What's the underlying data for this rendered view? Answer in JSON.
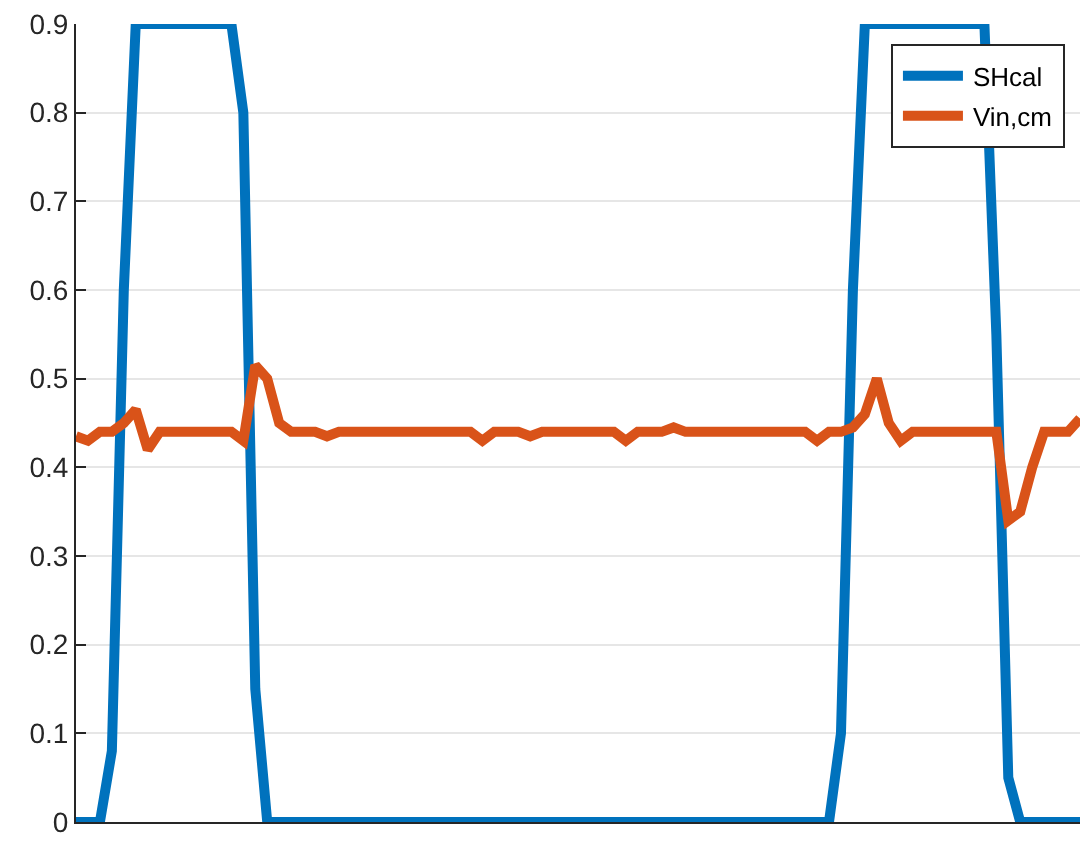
{
  "chart_data": {
    "type": "line",
    "categories": [
      null,
      null,
      null,
      null,
      null,
      null,
      null,
      null,
      null,
      null,
      null,
      null,
      null,
      null,
      null,
      null,
      null,
      null,
      null,
      null,
      null,
      null,
      null,
      null,
      null,
      null,
      null,
      null,
      null,
      null,
      null,
      null,
      null,
      null,
      null,
      null,
      null,
      null,
      null,
      null,
      null,
      null,
      null,
      null,
      null,
      null,
      null,
      null,
      null,
      null,
      null,
      null,
      null,
      null,
      null,
      null,
      null,
      null,
      null,
      null,
      null,
      null,
      null,
      null,
      null,
      null,
      null,
      null,
      null,
      null,
      null,
      null,
      null,
      null,
      null,
      null,
      null,
      null,
      null,
      null,
      null,
      null,
      null,
      null,
      null
    ],
    "series": [
      {
        "name": "SHcal",
        "color": "#0072bd",
        "values": [
          0,
          0,
          0,
          0.08,
          0.6,
          0.9,
          0.9,
          0.9,
          0.9,
          0.9,
          0.9,
          0.9,
          0.9,
          0.9,
          0.8,
          0.15,
          0,
          0,
          0,
          0,
          0,
          0,
          0,
          0,
          0,
          0,
          0,
          0,
          0,
          0,
          0,
          0,
          0,
          0,
          0,
          0,
          0,
          0,
          0,
          0,
          0,
          0,
          0,
          0,
          0,
          0,
          0,
          0,
          0,
          0,
          0,
          0,
          0,
          0,
          0,
          0,
          0,
          0,
          0,
          0,
          0,
          0,
          0,
          0,
          0.1,
          0.6,
          0.9,
          0.9,
          0.9,
          0.9,
          0.9,
          0.9,
          0.9,
          0.9,
          0.9,
          0.9,
          0.9,
          0.55,
          0.05,
          0,
          0,
          0,
          0,
          0,
          0
        ]
      },
      {
        "name": "Vin,cm",
        "color": "#d95319",
        "values": [
          0.435,
          0.43,
          0.44,
          0.44,
          0.45,
          0.465,
          0.42,
          0.44,
          0.44,
          0.44,
          0.44,
          0.44,
          0.44,
          0.44,
          0.43,
          0.515,
          0.5,
          0.45,
          0.44,
          0.44,
          0.44,
          0.435,
          0.44,
          0.44,
          0.44,
          0.44,
          0.44,
          0.44,
          0.44,
          0.44,
          0.44,
          0.44,
          0.44,
          0.44,
          0.43,
          0.44,
          0.44,
          0.44,
          0.435,
          0.44,
          0.44,
          0.44,
          0.44,
          0.44,
          0.44,
          0.44,
          0.43,
          0.44,
          0.44,
          0.44,
          0.445,
          0.44,
          0.44,
          0.44,
          0.44,
          0.44,
          0.44,
          0.44,
          0.44,
          0.44,
          0.44,
          0.44,
          0.43,
          0.44,
          0.44,
          0.445,
          0.46,
          0.5,
          0.45,
          0.43,
          0.44,
          0.44,
          0.44,
          0.44,
          0.44,
          0.44,
          0.44,
          0.44,
          0.34,
          0.35,
          0.4,
          0.44,
          0.44,
          0.44,
          0.455
        ]
      }
    ],
    "ylim": [
      0,
      0.9
    ],
    "yticks": [
      0,
      0.1,
      0.2,
      0.3,
      0.4,
      0.5,
      0.6,
      0.7,
      0.8,
      0.9
    ],
    "grid": "y",
    "legend": "top right",
    "tick_labels": "y",
    "line_style": "solid",
    "marker": "none"
  }
}
